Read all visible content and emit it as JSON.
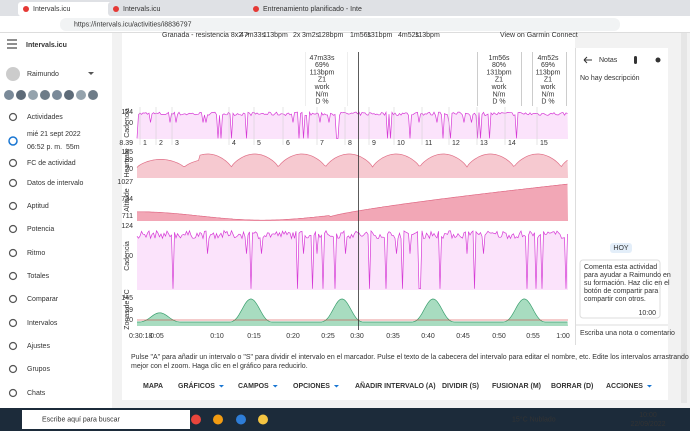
{
  "browser": {
    "tabs": [
      "Intervals.icu",
      "Intervals.icu",
      "Entrenamiento planificado - Inte"
    ],
    "url": "https://intervals.icu/activities/i8836797"
  },
  "sidebar": {
    "brand": "Intervals.icu",
    "user": "Raimundo",
    "date": "mié 21 sept 2022",
    "time": "06:52 p. m.",
    "duration": "55m",
    "menu": [
      "Actividades",
      "FC de actividad",
      "Datos de intervalo",
      "Aptitud",
      "Potencia",
      "Ritmo",
      "Totales",
      "Comparar",
      "Intervalos",
      "Ajustes",
      "Grupos",
      "Chats"
    ]
  },
  "activity": {
    "summary": [
      "Granada - resistencia 8x2 ↗",
      "47m33s",
      "113bpm",
      "2x",
      "3m2s",
      "128bpm",
      "1m56s",
      "131bpm",
      "4m52s",
      "113bpm"
    ],
    "garmin": "View on Garmin Connect",
    "intervals": [
      {
        "time": "47m33s",
        "pct": "69%",
        "hr": "113bpm",
        "zone": "Z1",
        "kind": "work",
        "nm": "N/m",
        "d": "D %"
      },
      {
        "time": "1m56s",
        "pct": "80%",
        "hr": "131bpm",
        "zone": "Z1",
        "kind": "work",
        "nm": "N/m",
        "d": "D %"
      },
      {
        "time": "4m52s",
        "pct": "69%",
        "hr": "113bpm",
        "zone": "Z1",
        "kind": "work",
        "nm": "N/m",
        "d": "D %"
      }
    ],
    "interval_numbers": [
      "1",
      "2",
      "3",
      "4",
      "5",
      "6",
      "7",
      "8",
      "9",
      "10",
      "11",
      "12",
      "13",
      "14",
      "15"
    ],
    "speed": "8.39",
    "charts": [
      {
        "label": "Cadencia",
        "ticks": [
          "124",
          "0"
        ]
      },
      {
        "label": "Heartrate",
        "ticks": [
          "145",
          "89",
          "70"
        ]
      },
      {
        "label": "Altitude",
        "ticks": [
          "1027",
          "734",
          "711"
        ]
      },
      {
        "label": "Cadencia",
        "ticks": [
          "124",
          "0"
        ]
      },
      {
        "label": "Zonas de FC",
        "ticks": [
          "145",
          "89",
          "70"
        ]
      }
    ],
    "x_labels": [
      "0:05",
      "0:10",
      "0:15",
      "0:20",
      "0:25",
      "0:30",
      "0:35",
      "0:40",
      "0:45",
      "0:50",
      "0:55",
      "1:00"
    ],
    "cursor": "0:30:18",
    "help": [
      "Pulse \"A\" para añadir un intervalo o \"S\" para dividir el intervalo en el marcador. Pulse el texto de la cabecera del intervalo para editar el nombre, etc. Edite los intervalos arrastrando los bordes, esto se hace",
      "mejor con el zoom. Haga clic en el gráfico para reducirlo."
    ],
    "buttons": [
      "MAPA",
      "GRÁFICOS",
      "CAMPOS",
      "OPCIONES",
      "AÑADIR INTERVALO (A)",
      "DIVIDIR (S)",
      "FUSIONAR (M)",
      "BORRAR (D)",
      "ACCIONES"
    ]
  },
  "notes": {
    "title": "Notas",
    "description": "No hay descripción",
    "day": "HOY",
    "message": [
      "Comenta esta actividad",
      "para ayudar a Raimundo en",
      "su formación. Haz clic en el",
      "botón de compartir para",
      "compartir con otros."
    ],
    "message_time": "10:00",
    "input": "Escriba una nota o comentario"
  },
  "taskbar": {
    "search": "Escribe aquí para buscar",
    "weather": "15°C  Nublado",
    "time": "10:00",
    "date": "22/09/2022"
  }
}
